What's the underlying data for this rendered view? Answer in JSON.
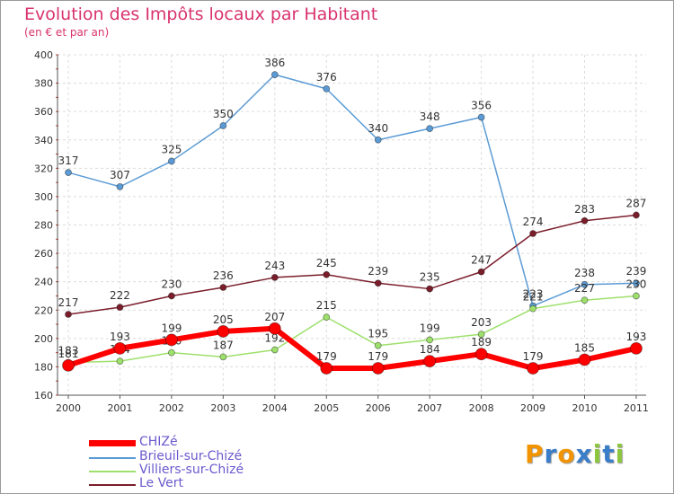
{
  "title": "Evolution des Impôts locaux par Habitant",
  "subtitle": "(en € et par an)",
  "logo": {
    "text": "Proxiti",
    "colors": [
      "#f29400",
      "#3a7dc9",
      "#f29400",
      "#3a7dc9",
      "#8cc63f",
      "#3a7dc9",
      "#8cc63f"
    ]
  },
  "chart_data": {
    "type": "line",
    "x": [
      "2000",
      "2001",
      "2002",
      "2003",
      "2004",
      "2005",
      "2006",
      "2007",
      "2008",
      "2009",
      "2010",
      "2011"
    ],
    "ylim": [
      160,
      400
    ],
    "yticks": [
      160,
      180,
      200,
      220,
      240,
      260,
      280,
      300,
      320,
      340,
      360,
      380,
      400
    ],
    "grid": true,
    "legend_position": "bottom-left",
    "series": [
      {
        "name": "Brieuil-sur-Chizé",
        "color": "#5b9bd5",
        "values": [
          317,
          307,
          325,
          350,
          386,
          376,
          340,
          348,
          356,
          223,
          238,
          239
        ],
        "labels": [
          "317",
          "307",
          "325",
          "350",
          "386",
          "376",
          "340",
          "348",
          "356",
          "223",
          "238",
          "239"
        ]
      },
      {
        "name": "Le Vert",
        "color": "#7b1e2b",
        "values": [
          217,
          222,
          230,
          236,
          243,
          245,
          239,
          235,
          247,
          274,
          283,
          287
        ],
        "labels": [
          "217",
          "222",
          "230",
          "236",
          "243",
          "245",
          "239",
          "235",
          "247",
          "274",
          "283",
          "287"
        ]
      },
      {
        "name": "Villiers-sur-Chizé",
        "color": "#9ee06c",
        "values": [
          183,
          184,
          190,
          187,
          192,
          215,
          195,
          199,
          203,
          221,
          227,
          230
        ],
        "labels": [
          "183",
          "184",
          "190",
          "187",
          "192",
          "215",
          "195",
          "199",
          "203",
          "221",
          "227",
          "230"
        ]
      },
      {
        "name": "CHIZé",
        "color": "#ff0000",
        "values": [
          181,
          193,
          199,
          205,
          207,
          179,
          179,
          184,
          189,
          179,
          185,
          193
        ],
        "labels": [
          "181",
          "193",
          "199",
          "205",
          "207",
          "179",
          "179",
          "184",
          "189",
          "179",
          "185",
          "193"
        ]
      }
    ],
    "legend": [
      {
        "name": "CHIZé",
        "color": "#ff0000"
      },
      {
        "name": "Brieuil-sur-Chizé",
        "color": "#5b9bd5"
      },
      {
        "name": "Villiers-sur-Chizé",
        "color": "#9ee06c"
      },
      {
        "name": "Le Vert",
        "color": "#7b1e2b"
      }
    ]
  }
}
